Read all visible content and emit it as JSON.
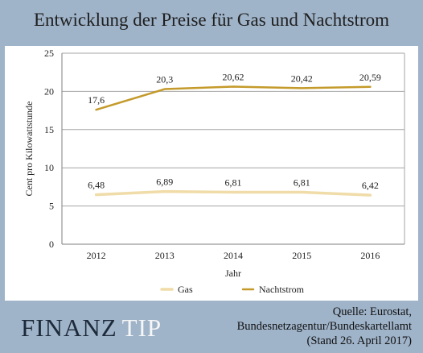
{
  "title": "Entwicklung der Preise für Gas und Nachtstrom",
  "logo": {
    "part1": "FINANZ",
    "part2": "TIP"
  },
  "source": {
    "line1": "Quelle: Eurostat,",
    "line2": "Bundesnetzagentur/Bundeskartellamt",
    "line3": "(Stand 26. April 2017)"
  },
  "colors": {
    "gas": "#f0dca8",
    "nachtstrom": "#c49a2a",
    "background": "#9fb3c9"
  },
  "chart_data": {
    "type": "line",
    "x": [
      "2012",
      "2013",
      "2014",
      "2015",
      "2016"
    ],
    "xlabel": "Jahr",
    "ylabel": "Cent pro Kilowattstunde",
    "ylim": [
      0,
      25
    ],
    "yticks": [
      0,
      5,
      10,
      15,
      20,
      25
    ],
    "grid": true,
    "legend": "bottom",
    "series": [
      {
        "name": "Gas",
        "values": [
          6.48,
          6.89,
          6.81,
          6.81,
          6.42
        ],
        "labels": [
          "6,48",
          "6,89",
          "6,81",
          "6,81",
          "6,42"
        ]
      },
      {
        "name": "Nachtstrom",
        "values": [
          17.6,
          20.3,
          20.62,
          20.42,
          20.59
        ],
        "labels": [
          "17,6",
          "20,3",
          "20,62",
          "20,42",
          "20,59"
        ]
      }
    ]
  }
}
